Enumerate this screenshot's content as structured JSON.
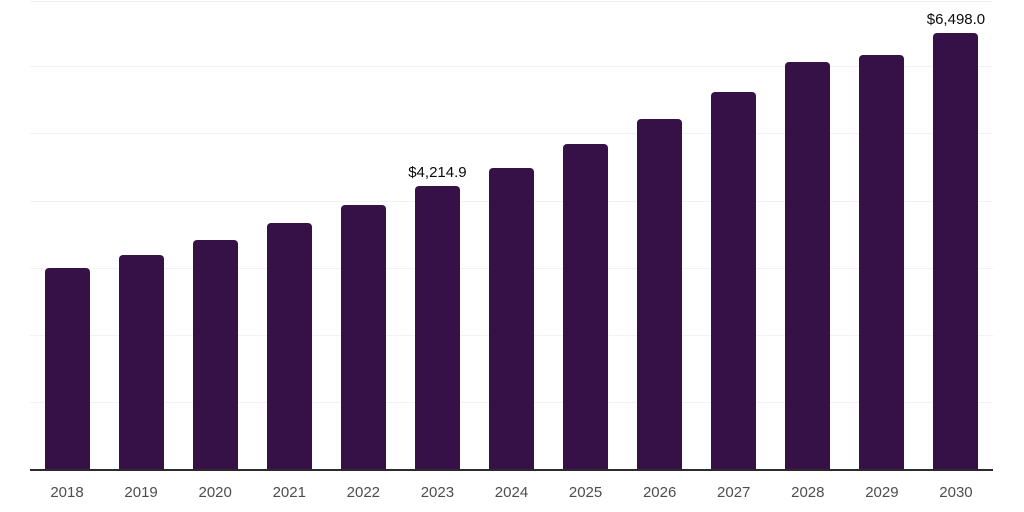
{
  "chart_data": {
    "type": "bar",
    "title": "",
    "xlabel": "",
    "ylabel": "",
    "categories": [
      "2018",
      "2019",
      "2020",
      "2021",
      "2022",
      "2023",
      "2024",
      "2025",
      "2026",
      "2027",
      "2028",
      "2029",
      "2030"
    ],
    "values": [
      3000,
      3195,
      3405,
      3660,
      3930,
      4214.9,
      4485,
      4845,
      5215,
      5620,
      6070,
      6170,
      6498
    ],
    "annotations": [
      {
        "category": "2023",
        "text": "$4,214.9"
      },
      {
        "category": "2030",
        "text": "$6,498.0"
      }
    ],
    "ylim": [
      0,
      7000
    ],
    "gridline_step": 1000,
    "grid": "horizontal",
    "legend": "none",
    "y_axis_labels_visible": false,
    "colors": {
      "bar": "#351148",
      "axis_line": "#2b2b2b",
      "tick_label": "#4d4d4d",
      "data_label": "#0a0a0a",
      "gridline": "#f2f2f4",
      "background": "#ffffff"
    }
  }
}
